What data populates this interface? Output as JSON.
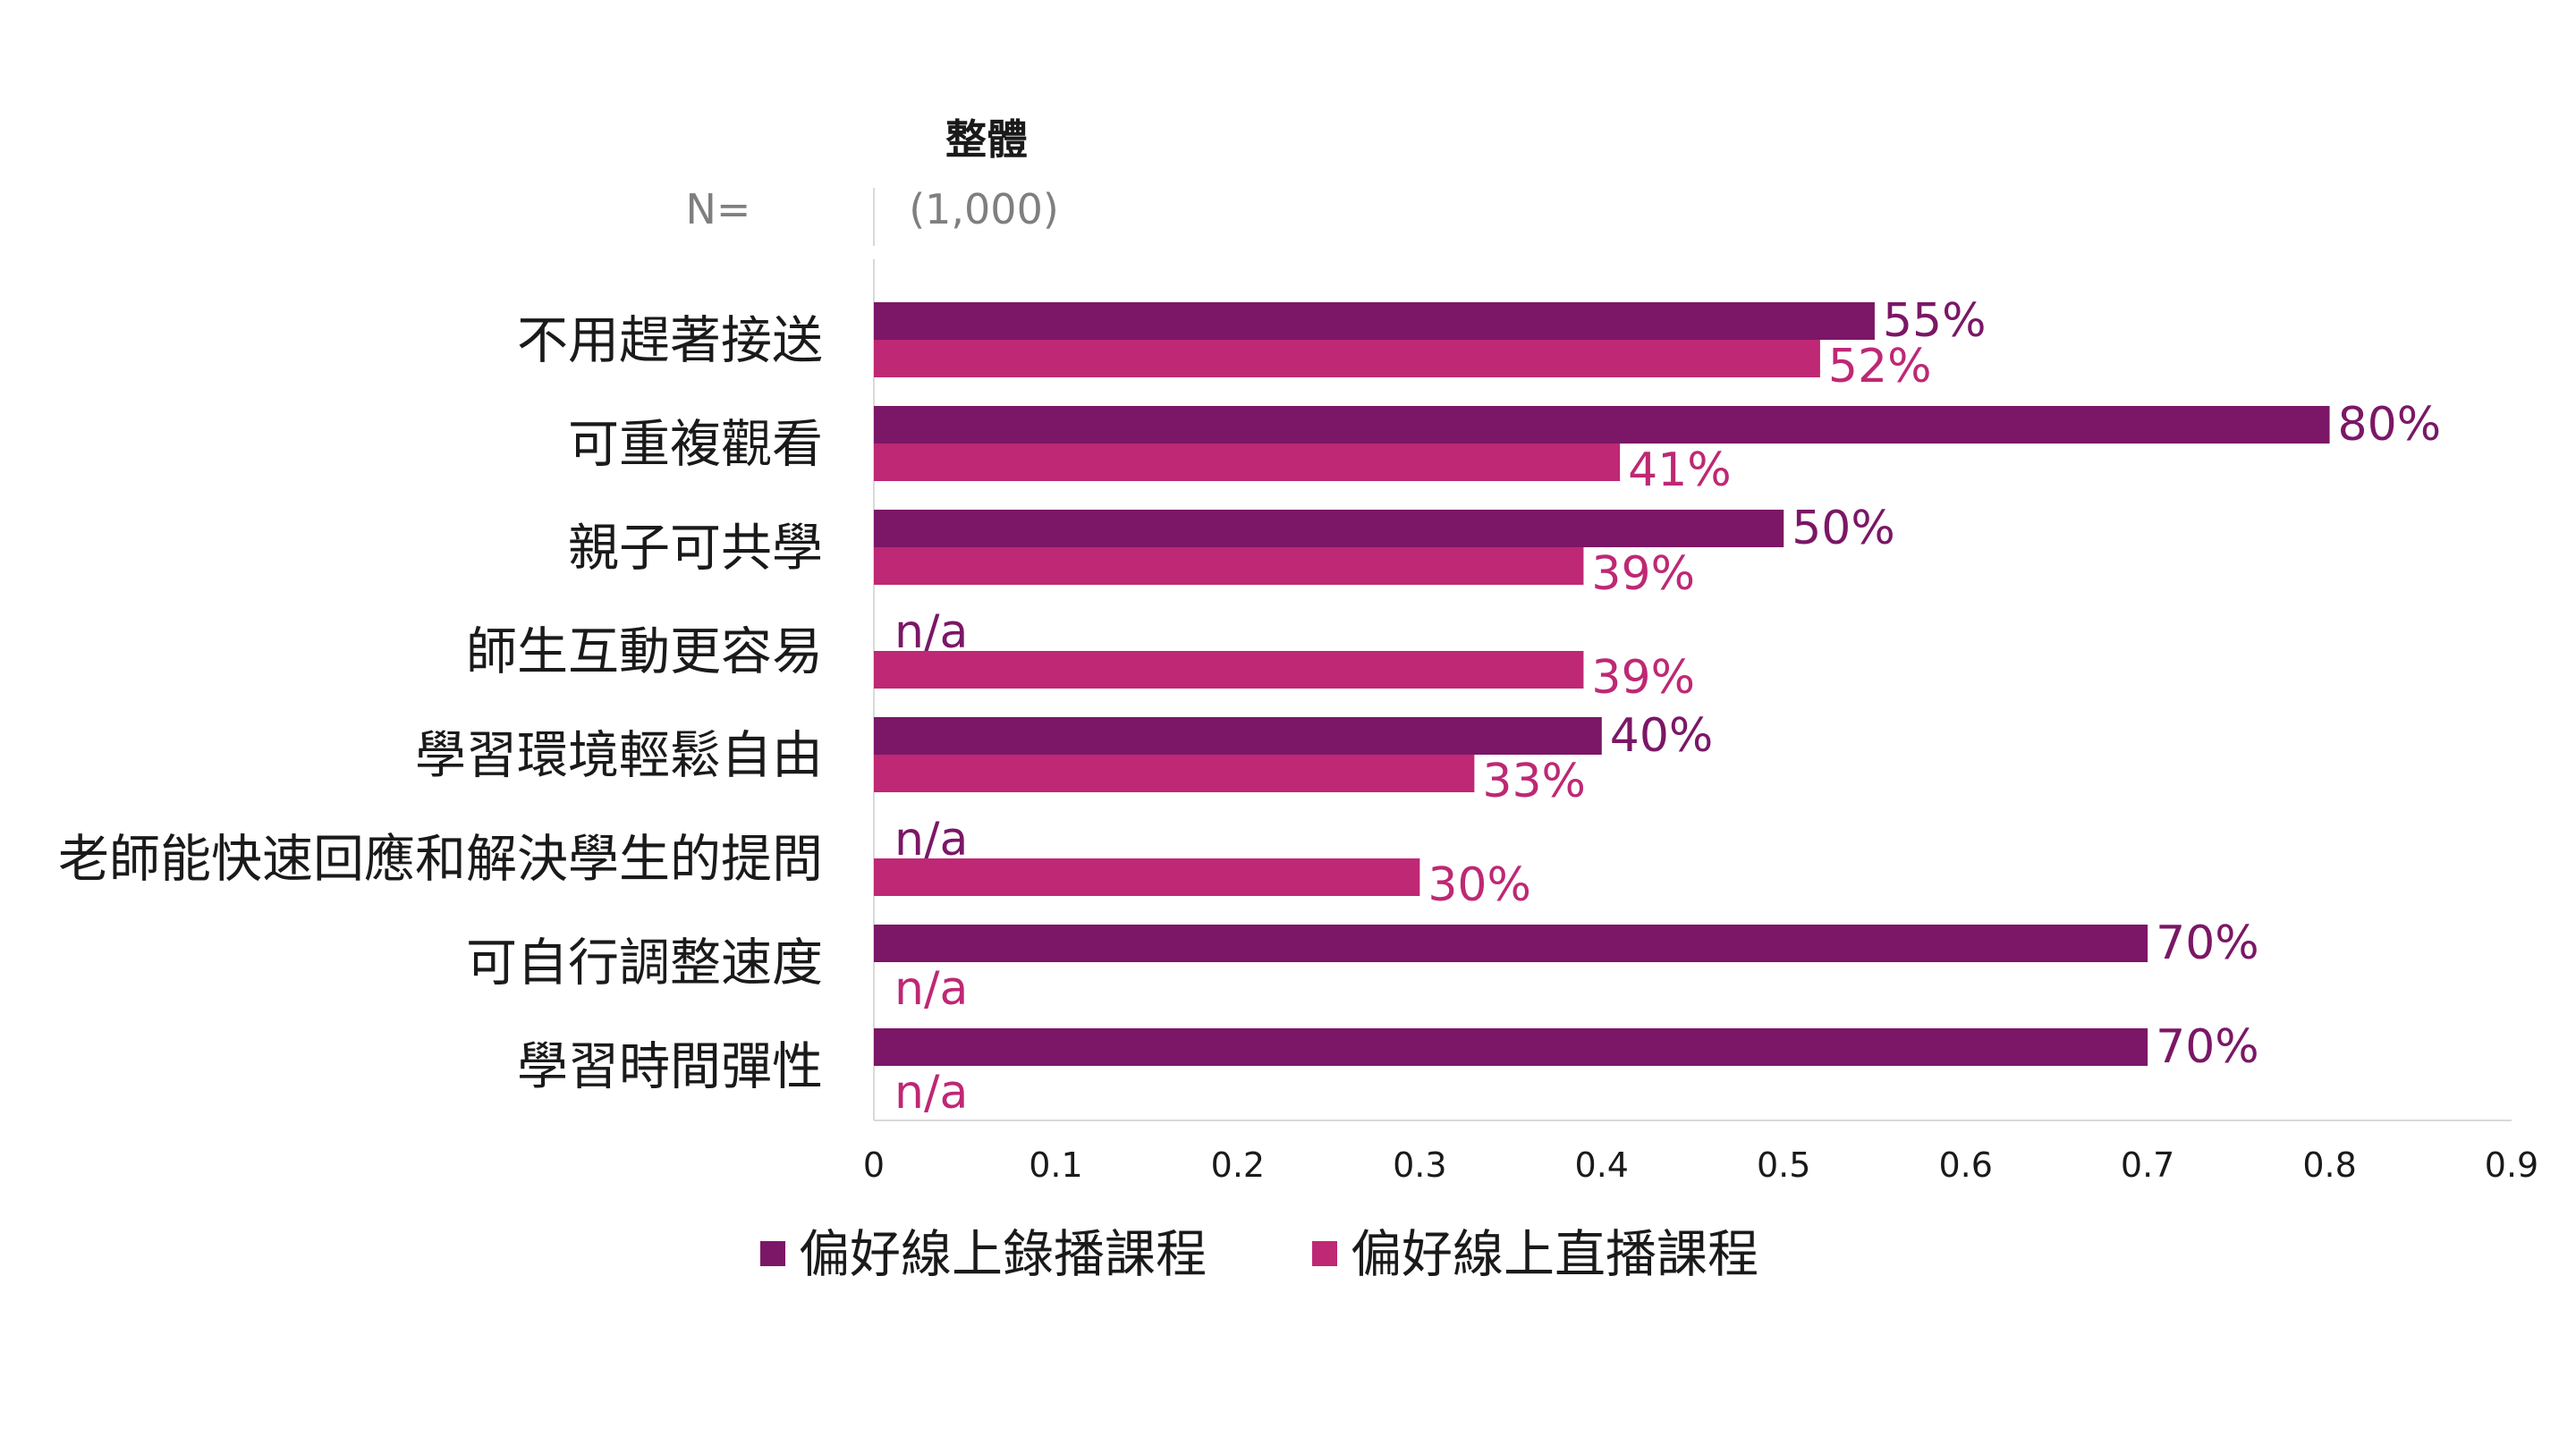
{
  "chart_data": {
    "type": "bar",
    "orientation": "horizontal",
    "column_header": "整體",
    "n_label": "N=",
    "n_value": "(1,000)",
    "categories": [
      "不用趕著接送",
      "可重複觀看",
      "親子可共學",
      "師生互動更容易",
      "學習環境輕鬆自由",
      "老師能快速回應和解決學生的提問",
      "可自行調整速度",
      "學習時間彈性"
    ],
    "series": [
      {
        "name": "偏好線上錄播課程",
        "color": "#7b1766",
        "values": [
          0.55,
          0.8,
          0.5,
          null,
          0.4,
          null,
          0.7,
          0.7
        ],
        "labels": [
          "55%",
          "80%",
          "50%",
          "n/a",
          "40%",
          "n/a",
          "70%",
          "70%"
        ]
      },
      {
        "name": "偏好線上直播課程",
        "color": "#be2874",
        "values": [
          0.52,
          0.41,
          0.39,
          0.39,
          0.33,
          0.3,
          null,
          null
        ],
        "labels": [
          "52%",
          "41%",
          "39%",
          "39%",
          "33%",
          "30%",
          "n/a",
          "n/a"
        ]
      }
    ],
    "xlim": [
      0,
      0.9
    ],
    "xticks": [
      0,
      0.1,
      0.2,
      0.3,
      0.4,
      0.5,
      0.6,
      0.7,
      0.8,
      0.9
    ],
    "xtick_labels": [
      "0",
      "0.1",
      "0.2",
      "0.3",
      "0.4",
      "0.5",
      "0.6",
      "0.7",
      "0.8",
      "0.9"
    ],
    "grid": false,
    "legend_position": "bottom"
  }
}
